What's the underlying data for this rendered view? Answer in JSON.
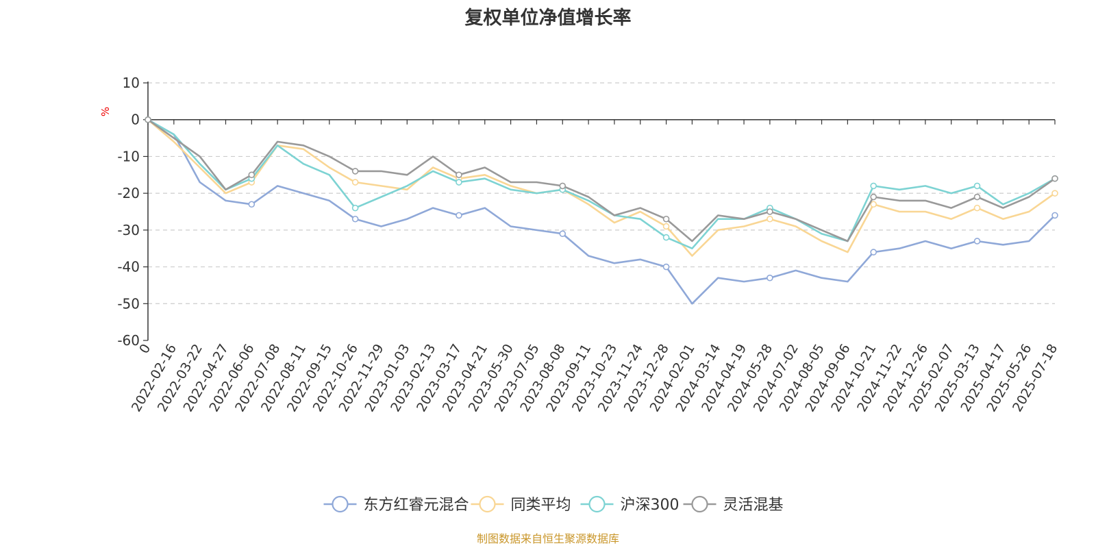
{
  "chart_data": {
    "type": "line",
    "title": "复权单位净值增长率",
    "ylabel": "%",
    "ylim": [
      -60,
      10
    ],
    "yticks": [
      10,
      0,
      -10,
      -20,
      -30,
      -40,
      -50,
      -60
    ],
    "grid": true,
    "legend_position": "bottom",
    "source_note": "制图数据来自恒生聚源数据库",
    "categories": [
      "0",
      "2022-02-16",
      "2022-03-22",
      "2022-04-27",
      "2022-06-06",
      "2022-07-08",
      "2022-08-11",
      "2022-09-15",
      "2022-10-26",
      "2022-11-29",
      "2023-01-03",
      "2023-02-13",
      "2023-03-17",
      "2023-04-21",
      "2023-05-30",
      "2023-07-05",
      "2023-08-08",
      "2023-09-11",
      "2023-10-23",
      "2023-11-24",
      "2023-12-28",
      "2024-02-01",
      "2024-03-14",
      "2024-04-19",
      "2024-05-28",
      "2024-07-02",
      "2024-08-05",
      "2024-09-06",
      "2024-10-21",
      "2024-11-22",
      "2024-12-26",
      "2025-02-07",
      "2025-03-13",
      "2025-04-17",
      "2025-05-26",
      "2025-07-18"
    ],
    "series": [
      {
        "name": "东方红睿元混合",
        "color": "#8fa8d8",
        "values": [
          0,
          -4,
          -17,
          -22,
          -23,
          -18,
          -20,
          -22,
          -27,
          -29,
          -27,
          -24,
          -26,
          -24,
          -29,
          -30,
          -31,
          -37,
          -39,
          -38,
          -40,
          -50,
          -43,
          -44,
          -43,
          -41,
          -43,
          -44,
          -36,
          -35,
          -33,
          -35,
          -33,
          -34,
          -33,
          -26
        ]
      },
      {
        "name": "同类平均",
        "color": "#f9d694",
        "values": [
          0,
          -6,
          -13,
          -20,
          -17,
          -7,
          -8,
          -13,
          -17,
          -18,
          -19,
          -13,
          -16,
          -15,
          -18,
          -20,
          -19,
          -23,
          -28,
          -25,
          -29,
          -37,
          -30,
          -29,
          -27,
          -29,
          -33,
          -36,
          -23,
          -25,
          -25,
          -27,
          -24,
          -27,
          -25,
          -20
        ]
      },
      {
        "name": "沪深300",
        "color": "#7dd3d3",
        "values": [
          0,
          -4,
          -12,
          -19,
          -16,
          -7,
          -12,
          -15,
          -24,
          -21,
          -18,
          -14,
          -17,
          -16,
          -19,
          -20,
          -19,
          -22,
          -26,
          -27,
          -32,
          -35,
          -27,
          -27,
          -24,
          -27,
          -31,
          -33,
          -18,
          -19,
          -18,
          -20,
          -18,
          -23,
          -20,
          -16
        ]
      },
      {
        "name": "灵活混基",
        "color": "#999999",
        "values": [
          0,
          -5,
          -10,
          -19,
          -15,
          -6,
          -7,
          -10,
          -14,
          -14,
          -15,
          -10,
          -15,
          -13,
          -17,
          -17,
          -18,
          -21,
          -26,
          -24,
          -27,
          -33,
          -26,
          -27,
          -25,
          -27,
          -30,
          -33,
          -21,
          -22,
          -22,
          -24,
          -21,
          -24,
          -21,
          -16
        ]
      }
    ]
  }
}
